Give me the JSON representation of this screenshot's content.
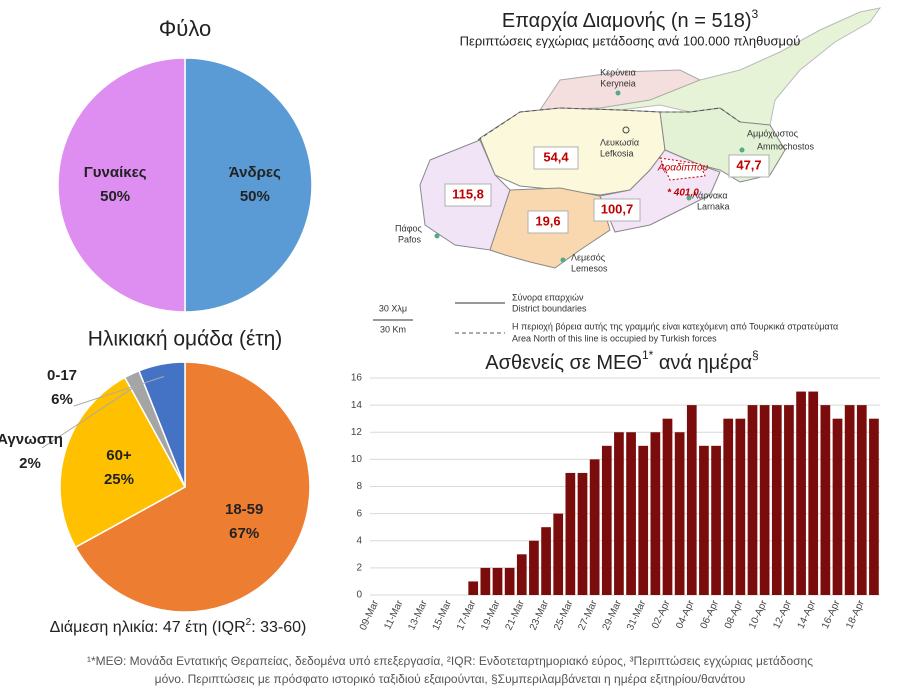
{
  "chart_data": [
    {
      "type": "pie",
      "title": "Φύλο",
      "categories": [
        "Άνδρες",
        "Γυναίκες"
      ],
      "values": [
        50,
        50
      ],
      "value_labels": [
        "50%",
        "50%"
      ],
      "colors": [
        "#5b9bd5",
        "#dd8ef0"
      ]
    },
    {
      "type": "pie",
      "title": "Ηλικιακή ομάδα (έτη)",
      "categories": [
        "18-59",
        "60+",
        "Άγνωστη",
        "0-17"
      ],
      "values": [
        67,
        25,
        2,
        6
      ],
      "value_labels": [
        "67%",
        "25%",
        "2%",
        "6%"
      ],
      "colors": [
        "#ed7d31",
        "#ffc000",
        "#a5a5a5",
        "#4472c4"
      ],
      "caption": [
        "Διάμεση ηλικία: 47 έτη (IQR",
        "2",
        ": 33-60)"
      ]
    },
    {
      "type": "bar",
      "title": [
        "Ασθενείς σε ΜΕΘ",
        "1*",
        " ανά ημέρα",
        "§"
      ],
      "categories": [
        "09-Mar",
        null,
        "11-Mar",
        null,
        "13-Mar",
        null,
        "15-Mar",
        null,
        "17-Mar",
        null,
        "19-Mar",
        null,
        "21-Mar",
        null,
        "23-Mar",
        null,
        "25-Mar",
        null,
        "27-Mar",
        null,
        "29-Mar",
        null,
        "31-Mar",
        null,
        "02-Apr",
        null,
        "04-Apr",
        null,
        "06-Apr",
        null,
        "08-Apr",
        null,
        "10-Apr",
        null,
        "12-Apr",
        null,
        "14-Apr",
        null,
        "16-Apr",
        null,
        "18-Apr",
        null
      ],
      "values": [
        0,
        0,
        0,
        0,
        0,
        0,
        0,
        0,
        1,
        2,
        2,
        2,
        3,
        4,
        5,
        6,
        9,
        9,
        10,
        11,
        12,
        12,
        11,
        12,
        13,
        12,
        14,
        11,
        11,
        13,
        13,
        14,
        14,
        14,
        14,
        15,
        15,
        14,
        13,
        14,
        14,
        13
      ],
      "color": "#7b0c0c",
      "ylim": [
        0,
        16
      ],
      "yticks": [
        0,
        2,
        4,
        6,
        8,
        10,
        12,
        14,
        16
      ],
      "grid": true
    }
  ],
  "map": {
    "title": "Επαρχία Διαμονής (n = 518)",
    "title_sup": "3",
    "subtitle": "Περιπτώσεις εγχώριας μετάδοσης ανά 100.000 πληθυσμού",
    "districts": [
      {
        "name": "Κερύνεια",
        "name_en": "Keryneia"
      },
      {
        "name": "Λευκωσία",
        "name_en": "Lefkosia",
        "rate": "54,4"
      },
      {
        "name": "Αμμόχωστος",
        "name_en": "Ammochostos",
        "rate": "47,7"
      },
      {
        "name": "Λάρνακα",
        "name_en": "Larnaka",
        "rate": "100,7"
      },
      {
        "name": "Πάφος",
        "name_en": "Pafos",
        "rate": "115,8"
      },
      {
        "name": "Λεμεσός",
        "name_en": "Lemesos",
        "rate": "19,6"
      }
    ],
    "highlight": {
      "name": "Αραδίππου",
      "rate": "* 401,0"
    },
    "legend": {
      "scale": [
        "30 Χλμ",
        "30 Km"
      ],
      "boundary": [
        "Σύνορα επαρχιών",
        "District boundaries"
      ],
      "occupied": [
        "Η περιοχή βόρεια αυτής της γραμμής είναι κατεχόμενη από Τουρκικά στρατεύματα",
        "Area North of this line is occupied by Turkish forces"
      ]
    }
  },
  "footnote": [
    "¹*ΜΕΘ: Μονάδα Εντατικής Θεραπείας, δεδομένα υπό επεξεργασία, ²IQR: Ενδοτεταρτημοριακό εύρος, ³Περιπτώσεις εγχώριας μετάδοσης",
    "μόνο. Περιπτώσεις με πρόσφατο ιστορικό ταξιδιού εξαιρούνται, §Συμπεριλαμβάνεται η ημέρα εξιτηρίου/θανάτου"
  ]
}
